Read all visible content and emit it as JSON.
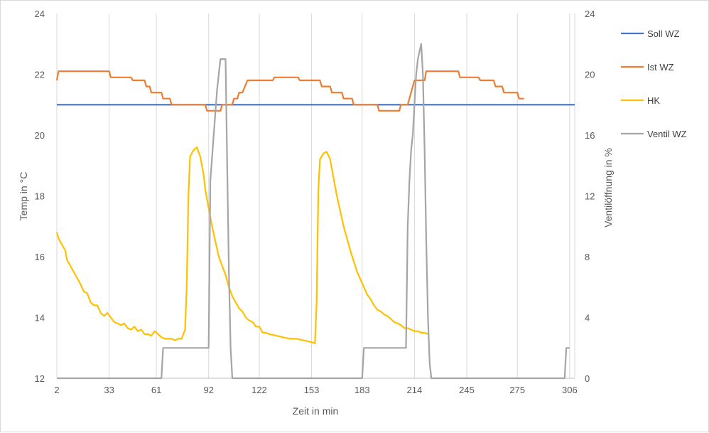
{
  "chart_data": {
    "type": "line",
    "xlabel": "Zeit in min",
    "ylabel_left": "Temp in °C",
    "ylabel_right": "Ventilöffnung in %",
    "xlim": [
      2,
      309
    ],
    "ylim_left": [
      12,
      24
    ],
    "ylim_right": [
      0,
      24
    ],
    "x_ticks": [
      "2",
      "33",
      "61",
      "92",
      "122",
      "153",
      "183",
      "214",
      "245",
      "275",
      "306"
    ],
    "y_ticks_left": [
      "12",
      "14",
      "16",
      "18",
      "20",
      "22",
      "24"
    ],
    "y_ticks_right": [
      "0",
      "4",
      "8",
      "12",
      "16",
      "20",
      "24"
    ],
    "grid": "vertical",
    "legend_position": "right",
    "series": [
      {
        "name": "Soll WZ",
        "axis": "left",
        "color": "#4472c4",
        "points": [
          [
            2,
            21.0
          ],
          [
            309,
            21.0
          ]
        ]
      },
      {
        "name": "Ist WZ",
        "axis": "left",
        "color": "#ed7d31",
        "points": [
          [
            2,
            21.8
          ],
          [
            3,
            22.1
          ],
          [
            33,
            22.1
          ],
          [
            34,
            21.9
          ],
          [
            46,
            21.9
          ],
          [
            47,
            21.8
          ],
          [
            54,
            21.8
          ],
          [
            55,
            21.6
          ],
          [
            57,
            21.6
          ],
          [
            58,
            21.4
          ],
          [
            64,
            21.4
          ],
          [
            65,
            21.2
          ],
          [
            69,
            21.2
          ],
          [
            70,
            21.0
          ],
          [
            90,
            21.0
          ],
          [
            91,
            20.8
          ],
          [
            99,
            20.8
          ],
          [
            100,
            21.0
          ],
          [
            106,
            21.0
          ],
          [
            107,
            21.2
          ],
          [
            109,
            21.2
          ],
          [
            110,
            21.4
          ],
          [
            112,
            21.4
          ],
          [
            115,
            21.8
          ],
          [
            130,
            21.8
          ],
          [
            131,
            21.9
          ],
          [
            145,
            21.9
          ],
          [
            146,
            21.8
          ],
          [
            158,
            21.8
          ],
          [
            159,
            21.6
          ],
          [
            164,
            21.6
          ],
          [
            165,
            21.4
          ],
          [
            171,
            21.4
          ],
          [
            172,
            21.2
          ],
          [
            177,
            21.2
          ],
          [
            178,
            21.0
          ],
          [
            192,
            21.0
          ],
          [
            193,
            20.8
          ],
          [
            205,
            20.8
          ],
          [
            206,
            21.0
          ],
          [
            210,
            21.0
          ],
          [
            214,
            21.8
          ],
          [
            220,
            21.8
          ],
          [
            221,
            22.1
          ],
          [
            240,
            22.1
          ],
          [
            241,
            21.9
          ],
          [
            252,
            21.9
          ],
          [
            253,
            21.8
          ],
          [
            261,
            21.8
          ],
          [
            262,
            21.6
          ],
          [
            266,
            21.6
          ],
          [
            267,
            21.4
          ],
          [
            275,
            21.4
          ],
          [
            276,
            21.2
          ],
          [
            279,
            21.2
          ]
        ]
      },
      {
        "name": "HK",
        "axis": "left",
        "color": "#ffc000",
        "points": [
          [
            2,
            16.8
          ],
          [
            3,
            16.6
          ],
          [
            5,
            16.4
          ],
          [
            7,
            16.2
          ],
          [
            8,
            15.9
          ],
          [
            10,
            15.7
          ],
          [
            12,
            15.5
          ],
          [
            14,
            15.3
          ],
          [
            16,
            15.1
          ],
          [
            18,
            14.85
          ],
          [
            20,
            14.8
          ],
          [
            22,
            14.5
          ],
          [
            24,
            14.4
          ],
          [
            26,
            14.4
          ],
          [
            28,
            14.15
          ],
          [
            30,
            14.05
          ],
          [
            32,
            14.15
          ],
          [
            34,
            14.0
          ],
          [
            36,
            13.85
          ],
          [
            38,
            13.8
          ],
          [
            40,
            13.75
          ],
          [
            42,
            13.8
          ],
          [
            44,
            13.65
          ],
          [
            46,
            13.6
          ],
          [
            48,
            13.7
          ],
          [
            50,
            13.55
          ],
          [
            52,
            13.6
          ],
          [
            54,
            13.45
          ],
          [
            56,
            13.45
          ],
          [
            58,
            13.4
          ],
          [
            60,
            13.55
          ],
          [
            62,
            13.45
          ],
          [
            64,
            13.35
          ],
          [
            66,
            13.3
          ],
          [
            68,
            13.3
          ],
          [
            70,
            13.3
          ],
          [
            72,
            13.25
          ],
          [
            74,
            13.3
          ],
          [
            76,
            13.3
          ],
          [
            78,
            13.6
          ],
          [
            79,
            15.0
          ],
          [
            80,
            18.0
          ],
          [
            81,
            19.3
          ],
          [
            83,
            19.5
          ],
          [
            85,
            19.6
          ],
          [
            87,
            19.3
          ],
          [
            89,
            18.7
          ],
          [
            90,
            18.2
          ],
          [
            92,
            17.6
          ],
          [
            94,
            17.0
          ],
          [
            96,
            16.5
          ],
          [
            98,
            16.0
          ],
          [
            100,
            15.7
          ],
          [
            102,
            15.4
          ],
          [
            104,
            15.0
          ],
          [
            106,
            14.7
          ],
          [
            108,
            14.5
          ],
          [
            110,
            14.3
          ],
          [
            112,
            14.2
          ],
          [
            114,
            14.0
          ],
          [
            116,
            13.9
          ],
          [
            118,
            13.85
          ],
          [
            120,
            13.7
          ],
          [
            122,
            13.7
          ],
          [
            124,
            13.5
          ],
          [
            126,
            13.5
          ],
          [
            128,
            13.45
          ],
          [
            132,
            13.4
          ],
          [
            136,
            13.35
          ],
          [
            140,
            13.3
          ],
          [
            144,
            13.3
          ],
          [
            148,
            13.25
          ],
          [
            152,
            13.2
          ],
          [
            155,
            13.15
          ],
          [
            156,
            14.5
          ],
          [
            157,
            18.2
          ],
          [
            158,
            19.2
          ],
          [
            160,
            19.4
          ],
          [
            162,
            19.45
          ],
          [
            164,
            19.2
          ],
          [
            166,
            18.6
          ],
          [
            168,
            18.0
          ],
          [
            170,
            17.5
          ],
          [
            172,
            17.0
          ],
          [
            174,
            16.6
          ],
          [
            176,
            16.2
          ],
          [
            178,
            15.85
          ],
          [
            180,
            15.5
          ],
          [
            182,
            15.25
          ],
          [
            184,
            15.0
          ],
          [
            186,
            14.75
          ],
          [
            188,
            14.6
          ],
          [
            190,
            14.4
          ],
          [
            192,
            14.25
          ],
          [
            194,
            14.2
          ],
          [
            196,
            14.1
          ],
          [
            198,
            14.05
          ],
          [
            200,
            13.95
          ],
          [
            202,
            13.85
          ],
          [
            204,
            13.8
          ],
          [
            206,
            13.75
          ],
          [
            208,
            13.65
          ],
          [
            210,
            13.65
          ],
          [
            212,
            13.6
          ],
          [
            214,
            13.55
          ],
          [
            216,
            13.55
          ],
          [
            218,
            13.5
          ],
          [
            220,
            13.5
          ],
          [
            222,
            13.45
          ]
        ]
      },
      {
        "name": "Ventil WZ",
        "axis": "right",
        "color": "#a5a5a5",
        "points": [
          [
            2,
            0
          ],
          [
            64,
            0
          ],
          [
            65,
            2
          ],
          [
            92,
            2
          ],
          [
            93,
            13
          ],
          [
            95,
            16
          ],
          [
            97,
            19
          ],
          [
            99,
            21
          ],
          [
            102,
            21
          ],
          [
            103,
            14
          ],
          [
            104,
            7
          ],
          [
            105,
            2
          ],
          [
            106,
            0
          ],
          [
            183,
            0
          ],
          [
            184,
            2
          ],
          [
            209,
            2
          ],
          [
            210,
            10
          ],
          [
            211,
            13
          ],
          [
            212,
            15
          ],
          [
            213,
            16
          ],
          [
            214,
            18
          ],
          [
            215,
            20
          ],
          [
            216,
            21
          ],
          [
            218,
            22
          ],
          [
            219,
            20
          ],
          [
            220,
            15
          ],
          [
            221,
            9
          ],
          [
            222,
            4
          ],
          [
            223,
            1
          ],
          [
            224,
            0
          ],
          [
            303,
            0
          ],
          [
            304,
            2
          ],
          [
            306,
            2
          ]
        ]
      }
    ]
  }
}
